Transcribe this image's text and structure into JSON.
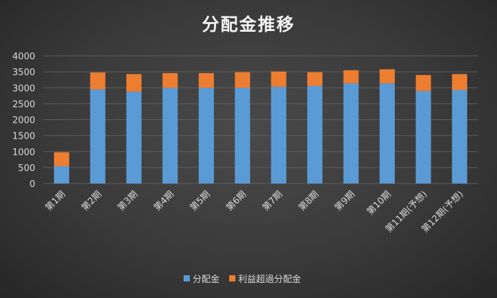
{
  "chart_data": {
    "type": "bar",
    "stacked": true,
    "title": "分配金推移",
    "xlabel": "",
    "ylabel": "",
    "categories": [
      "第1期",
      "第2期",
      "第3期",
      "第4期",
      "第5期",
      "第6期",
      "第7期",
      "第8期",
      "第9期",
      "第10期",
      "第11期(予想)",
      "第12期(予想)"
    ],
    "series": [
      {
        "name": "分配金",
        "color": "#5b9bd5",
        "values": [
          540,
          2950,
          2880,
          3000,
          3000,
          3000,
          3030,
          3060,
          3140,
          3140,
          2900,
          2930
        ]
      },
      {
        "name": "利益超過分配金",
        "color": "#ed7d31",
        "values": [
          440,
          530,
          550,
          460,
          460,
          490,
          480,
          430,
          410,
          440,
          500,
          500
        ]
      }
    ],
    "ylim": [
      0,
      4000
    ],
    "yticks": [
      0,
      500,
      1000,
      1500,
      2000,
      2500,
      3000,
      3500,
      4000
    ],
    "grid": true,
    "legend_position": "bottom"
  }
}
